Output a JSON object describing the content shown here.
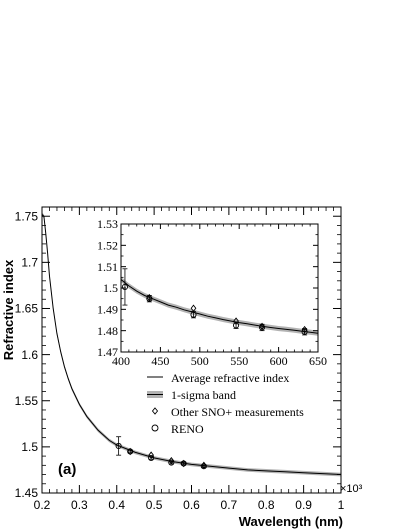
{
  "chart_data": [
    {
      "type": "line",
      "panel_label": "(a)",
      "xlabel": "Wavelength (nm)",
      "ylabel": "Refractive index",
      "x_multiplier_label": "×10³",
      "xlim": [
        0.2,
        1.0
      ],
      "ylim": [
        1.45,
        1.76
      ],
      "xticks": [
        0.2,
        0.3,
        0.4,
        0.5,
        0.6,
        0.7,
        0.8,
        0.9,
        1.0
      ],
      "xtick_labels": [
        "0.2",
        "0.3",
        "0.4",
        "0.5",
        "0.6",
        "0.7",
        "0.8",
        "0.9",
        "1"
      ],
      "yticks": [
        1.45,
        1.5,
        1.55,
        1.6,
        1.65,
        1.7,
        1.75
      ],
      "ytick_labels": [
        "1.45",
        "1.5",
        "1.55",
        "1.6",
        "1.65",
        "1.7",
        "1.75"
      ],
      "series": [
        {
          "name": "Average refractive index",
          "kind": "line",
          "x": [
            0.2,
            0.205,
            0.21,
            0.215,
            0.22,
            0.23,
            0.24,
            0.25,
            0.26,
            0.27,
            0.28,
            0.3,
            0.32,
            0.35,
            0.38,
            0.4,
            0.45,
            0.5,
            0.55,
            0.6,
            0.65,
            0.7,
            0.75,
            0.8,
            0.85,
            0.9,
            0.95,
            1.0
          ],
          "y": [
            1.752,
            1.75,
            1.732,
            1.71,
            1.685,
            1.65,
            1.623,
            1.603,
            1.587,
            1.574,
            1.563,
            1.546,
            1.533,
            1.518,
            1.507,
            1.502,
            1.494,
            1.488,
            1.484,
            1.481,
            1.479,
            1.477,
            1.475,
            1.474,
            1.473,
            1.472,
            1.471,
            1.47
          ]
        },
        {
          "name": "1-sigma band",
          "kind": "band",
          "x": [
            0.2,
            0.205,
            0.21,
            0.215,
            0.22,
            0.23,
            0.24,
            0.25,
            0.26,
            0.27,
            0.28,
            0.3,
            0.32,
            0.35,
            0.38,
            0.4,
            0.45,
            0.5,
            0.55,
            0.6,
            0.65,
            0.7,
            0.75,
            0.8,
            0.85,
            0.9,
            0.95,
            1.0
          ],
          "half_width": 0.002
        },
        {
          "name": "Other SNO+ measurements",
          "kind": "points",
          "marker": "diamond",
          "x": [
            0.436,
            0.492,
            0.546,
            0.579,
            0.633
          ],
          "y": [
            1.495,
            1.491,
            1.485,
            1.482,
            1.48
          ]
        },
        {
          "name": "RENO",
          "kind": "points",
          "marker": "circle",
          "x": [
            0.405,
            0.436,
            0.492,
            0.546,
            0.579,
            0.633
          ],
          "y": [
            1.501,
            1.495,
            1.488,
            1.483,
            1.482,
            1.479
          ],
          "yerr": [
            0.01,
            0.0015,
            0.0015,
            0.0015,
            0.0015,
            0.0015
          ]
        }
      ],
      "legend": {
        "placement": "center-right",
        "entries": [
          "Average refractive index",
          "1-sigma band",
          "Other SNO+ measurements",
          "RENO"
        ]
      }
    },
    {
      "type": "line",
      "role": "inset",
      "xlim": [
        400,
        650
      ],
      "ylim": [
        1.47,
        1.53
      ],
      "xticks": [
        400,
        450,
        500,
        550,
        600,
        650
      ],
      "xtick_labels": [
        "400",
        "450",
        "500",
        "550",
        "600",
        "650"
      ],
      "yticks": [
        1.47,
        1.48,
        1.49,
        1.5,
        1.51,
        1.52,
        1.53
      ],
      "ytick_labels": [
        "1.47",
        "1.48",
        "1.49",
        "1.5",
        "1.51",
        "1.52",
        "1.53"
      ],
      "series": [
        {
          "name": "Average refractive index",
          "kind": "line",
          "x": [
            400,
            410,
            420,
            430,
            440,
            450,
            460,
            470,
            480,
            490,
            500,
            510,
            520,
            530,
            540,
            550,
            560,
            570,
            580,
            590,
            600,
            610,
            620,
            630,
            640,
            650
          ],
          "y": [
            1.504,
            1.501,
            1.4985,
            1.4965,
            1.495,
            1.4935,
            1.492,
            1.491,
            1.4898,
            1.4888,
            1.4878,
            1.4868,
            1.486,
            1.4852,
            1.4845,
            1.4838,
            1.4832,
            1.4826,
            1.482,
            1.4815,
            1.481,
            1.4806,
            1.4802,
            1.4797,
            1.4793,
            1.4788
          ]
        },
        {
          "name": "1-sigma band",
          "kind": "band",
          "x": [
            400,
            410,
            420,
            430,
            440,
            450,
            460,
            470,
            480,
            490,
            500,
            510,
            520,
            530,
            540,
            550,
            560,
            570,
            580,
            590,
            600,
            610,
            620,
            630,
            640,
            650
          ],
          "half_width": 0.0012
        },
        {
          "name": "Other SNO+ measurements",
          "kind": "points",
          "marker": "diamond",
          "x": [
            436,
            492,
            546,
            579,
            633
          ],
          "y": [
            1.4955,
            1.4905,
            1.4845,
            1.482,
            1.4805
          ]
        },
        {
          "name": "RENO",
          "kind": "points",
          "marker": "circle",
          "x": [
            405,
            436,
            492,
            546,
            579,
            633
          ],
          "y": [
            1.5005,
            1.495,
            1.4875,
            1.4825,
            1.4815,
            1.4795
          ],
          "yerr": [
            0.0085,
            0.0015,
            0.0015,
            0.0015,
            0.0015,
            0.0015
          ]
        }
      ]
    }
  ]
}
